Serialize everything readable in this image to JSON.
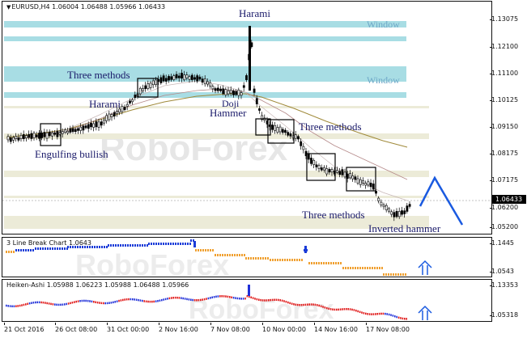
{
  "main_panel": {
    "symbol": "EURUSD,H4",
    "ohlc": "1.06004 1.06488 1.05966 1.06433",
    "current_price": "1.06433",
    "price_ticks": [
      "1.13075",
      "1.12100",
      "1.11100",
      "1.10125",
      "1.09150",
      "1.08175",
      "1.07175",
      "1.06200",
      "1.05200"
    ],
    "annotations": {
      "harami_top": "Harami",
      "window_1": "Window",
      "window_2": "Window",
      "three_methods_1": "Three methods",
      "harami_left": "Harami",
      "doji": "Doji",
      "hammer": "Hammer",
      "three_methods_2": "Three methods",
      "engulfing": "Engulfing bullish",
      "three_methods_3": "Three methods",
      "inverted_hammer": "Inverted hammer"
    }
  },
  "line_break_panel": {
    "title": "3 Line Break Chart 1.0643",
    "ticks": [
      "1.1445",
      "1.0543"
    ]
  },
  "heiken_panel": {
    "title": "Heiken-Ashi 1.05988 1.06223 1.05988 1.06488 1.05966",
    "ticks": [
      "1.13353",
      "1.05318"
    ]
  },
  "time_axis": [
    "21 Oct 2016",
    "26 Oct 08:00",
    "31 Oct 00:00",
    "2 Nov 16:00",
    "7 Nov 08:00",
    "10 Nov 00:00",
    "14 Nov 16:00",
    "17 Nov 08:00"
  ],
  "watermark": "RoboForex",
  "colors": {
    "window_band": "#a8dde4",
    "support_band": "#ecebd8",
    "bull": "#1a3bd8",
    "bear": "#e8891a",
    "ha_bear": "#e01818",
    "ha_bull": "#2030d8",
    "arrow": "#1a5ae0"
  }
}
